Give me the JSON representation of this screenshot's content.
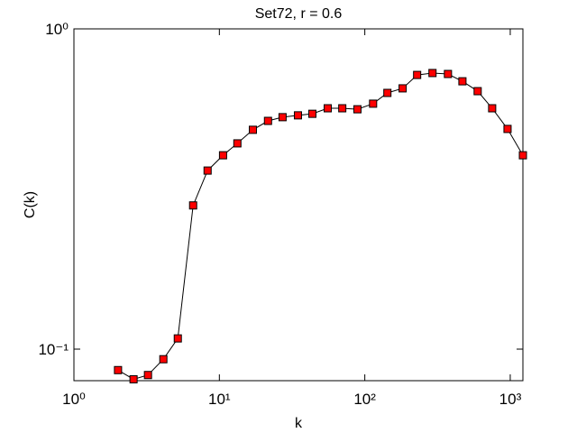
{
  "chart_data": {
    "type": "line",
    "title": "Set72, r = 0.6",
    "xlabel": "k",
    "ylabel": "C(k)",
    "x": [
      2.01,
      2.57,
      3.23,
      4.12,
      5.18,
      6.6,
      8.3,
      10.6,
      13.3,
      17.0,
      21.6,
      27.2,
      34.7,
      43.6,
      55.6,
      70,
      89,
      114,
      143,
      182,
      229,
      292,
      373,
      469,
      597,
      751,
      958,
      1222
    ],
    "series": [
      {
        "name": "C(k)",
        "color": "#ff0000",
        "line_color": "#000000",
        "values": [
          0.086,
          0.0805,
          0.083,
          0.093,
          0.108,
          0.281,
          0.361,
          0.403,
          0.439,
          0.484,
          0.516,
          0.53,
          0.537,
          0.543,
          0.565,
          0.565,
          0.561,
          0.584,
          0.631,
          0.652,
          0.718,
          0.728,
          0.723,
          0.686,
          0.639,
          0.565,
          0.487,
          0.403
        ]
      }
    ],
    "xscale": "log",
    "yscale": "log",
    "xlim": [
      1,
      1222
    ],
    "ylim": [
      0.0797,
      1
    ],
    "xticks": [
      {
        "value": 1,
        "label": "10⁰"
      },
      {
        "value": 10,
        "label": "10¹"
      },
      {
        "value": 100,
        "label": "10²"
      },
      {
        "value": 1000,
        "label": "10³"
      }
    ],
    "yticks": [
      {
        "value": 0.1,
        "label": "10⁻¹"
      },
      {
        "value": 1,
        "label": "10⁰"
      }
    ]
  }
}
